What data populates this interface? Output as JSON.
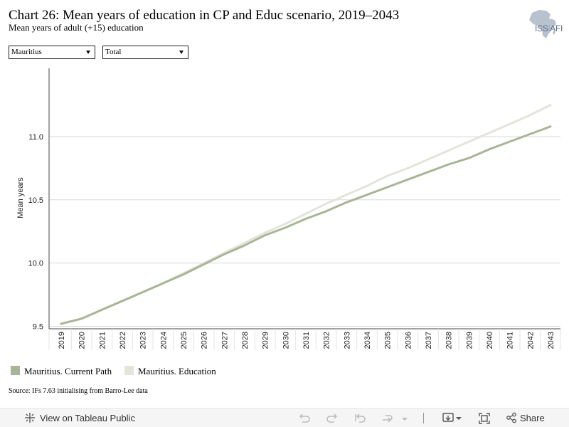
{
  "header": {
    "title": "Chart 26: Mean years of education in CP and Educ scenario, 2019–2043",
    "subtitle": "Mean years of adult (+15) education",
    "logo_text_main": "ISS",
    "logo_text_sep": "|",
    "logo_text_tail": "AFI"
  },
  "filters": {
    "country": "Mauritius",
    "scope": "Total"
  },
  "colors": {
    "current_path": "#a8b596",
    "education": "#e2e5da",
    "gridline": "#d9d9d9",
    "logo": "#9aa8b8"
  },
  "chart_data": {
    "type": "line",
    "title": "Chart 26: Mean years of education in CP and Educ scenario, 2019–2043",
    "subtitle": "Mean years of adult (+15) education",
    "ylabel": "Mean years",
    "xlabel": "",
    "ylim": [
      9.48,
      11.54
    ],
    "yticks": [
      9.5,
      10.0,
      10.5,
      11.0
    ],
    "ytick_labels": [
      "9.5",
      "10.0",
      "10.5",
      "11.0"
    ],
    "grid": "horizontal",
    "legend_position": "bottom-left",
    "x": [
      "2019",
      "2020",
      "2021",
      "2022",
      "2023",
      "2024",
      "2025",
      "2026",
      "2027",
      "2028",
      "2029",
      "2030",
      "2031",
      "2032",
      "2033",
      "2034",
      "2035",
      "2036",
      "2037",
      "2038",
      "2039",
      "2040",
      "2041",
      "2042",
      "2043"
    ],
    "series": [
      {
        "name": "Mauritius. Current Path",
        "color": "#a8b596",
        "values": [
          9.52,
          9.56,
          9.63,
          9.7,
          9.77,
          9.84,
          9.91,
          9.99,
          10.07,
          10.14,
          10.22,
          10.28,
          10.35,
          10.41,
          10.48,
          10.54,
          10.6,
          10.66,
          10.72,
          10.78,
          10.83,
          10.9,
          10.96,
          11.02,
          11.08
        ]
      },
      {
        "name": "Mauritius. Education",
        "color": "#e2e5da",
        "values": [
          9.52,
          9.56,
          9.63,
          9.7,
          9.77,
          9.84,
          9.92,
          10.0,
          10.08,
          10.16,
          10.24,
          10.31,
          10.39,
          10.47,
          10.54,
          10.61,
          10.69,
          10.75,
          10.82,
          10.89,
          10.96,
          11.03,
          11.1,
          11.17,
          11.25
        ]
      }
    ]
  },
  "legend": {
    "items": [
      "Mauritius. Current Path",
      "Mauritius. Education"
    ]
  },
  "footer": {
    "source": "Source: IFs 7.63 initialising from Barro-Lee data"
  },
  "toolbar": {
    "view_on": "View on Tableau Public",
    "share": "Share",
    "icons": [
      "tableau-logo-icon",
      "undo-icon",
      "redo-icon",
      "revert-icon",
      "refresh-icon",
      "pause-dropdown-icon",
      "download-icon",
      "fullscreen-icon",
      "share-icon"
    ]
  }
}
